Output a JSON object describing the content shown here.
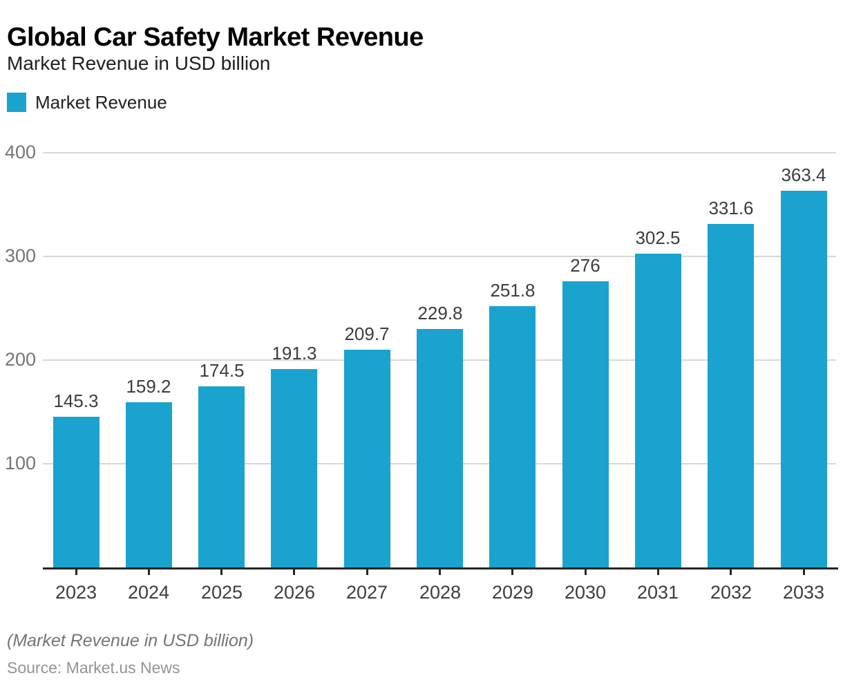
{
  "title": "Global Car Safety Market Revenue",
  "subtitle": "Market Revenue in USD billion",
  "legend": {
    "label": "Market Revenue",
    "swatch_icon": "legend-swatch-square"
  },
  "footer": {
    "note": "(Market Revenue in USD billion)",
    "source": "Source: Market.us News"
  },
  "colors": {
    "bar": "#1AA3CE",
    "grid": "#D8D8D8",
    "axis": "#262626",
    "y_tick_label": "#757575",
    "x_tick_label": "#3D3D3D",
    "value_label": "#3D3D3D",
    "title": "#000000"
  },
  "chart_data": {
    "type": "bar",
    "title": "Global Car Safety Market Revenue",
    "subtitle": "Market Revenue in USD billion",
    "series_name": "Market Revenue",
    "categories": [
      "2023",
      "2024",
      "2025",
      "2026",
      "2027",
      "2028",
      "2029",
      "2030",
      "2031",
      "2032",
      "2033"
    ],
    "values": [
      145.3,
      159.2,
      174.5,
      191.3,
      209.7,
      229.8,
      251.8,
      276,
      302.5,
      331.6,
      363.4
    ],
    "value_labels": [
      "145.3",
      "159.2",
      "174.5",
      "191.3",
      "209.7",
      "229.8",
      "251.8",
      "276",
      "302.5",
      "331.6",
      "363.4"
    ],
    "xlabel": "",
    "ylabel": "",
    "ylim": [
      0,
      400
    ],
    "yticks": [
      100,
      200,
      300,
      400
    ],
    "grid": "horizontal-only",
    "legend_position": "top-left",
    "bar_color": "#1AA3CE",
    "annotation": "(Market Revenue in USD billion)",
    "source": "Source: Market.us News"
  }
}
